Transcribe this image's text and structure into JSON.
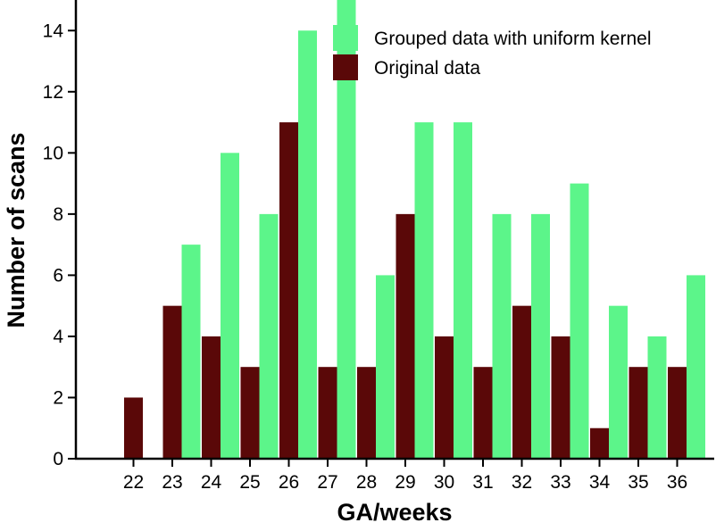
{
  "chart_data": {
    "type": "bar",
    "title": "",
    "xlabel": "GA/weeks",
    "ylabel": "Number of scans",
    "categories": [
      "22",
      "23",
      "24",
      "25",
      "26",
      "27",
      "28",
      "29",
      "30",
      "31",
      "32",
      "33",
      "34",
      "35",
      "36"
    ],
    "ylim": [
      0,
      15
    ],
    "yticks": [
      0,
      2,
      4,
      6,
      8,
      10,
      12,
      14
    ],
    "grid": false,
    "legend_position": "top-right",
    "series": [
      {
        "name": "Grouped data with uniform kernel",
        "color": "#5cf58a",
        "values": [
          0,
          7,
          10,
          8,
          14,
          15,
          6,
          11,
          11,
          8,
          8,
          9,
          5,
          4,
          6
        ]
      },
      {
        "name": "Original data",
        "color": "#5a0808",
        "values": [
          2,
          5,
          4,
          3,
          11,
          3,
          3,
          8,
          4,
          3,
          5,
          4,
          1,
          3,
          3
        ]
      }
    ]
  }
}
